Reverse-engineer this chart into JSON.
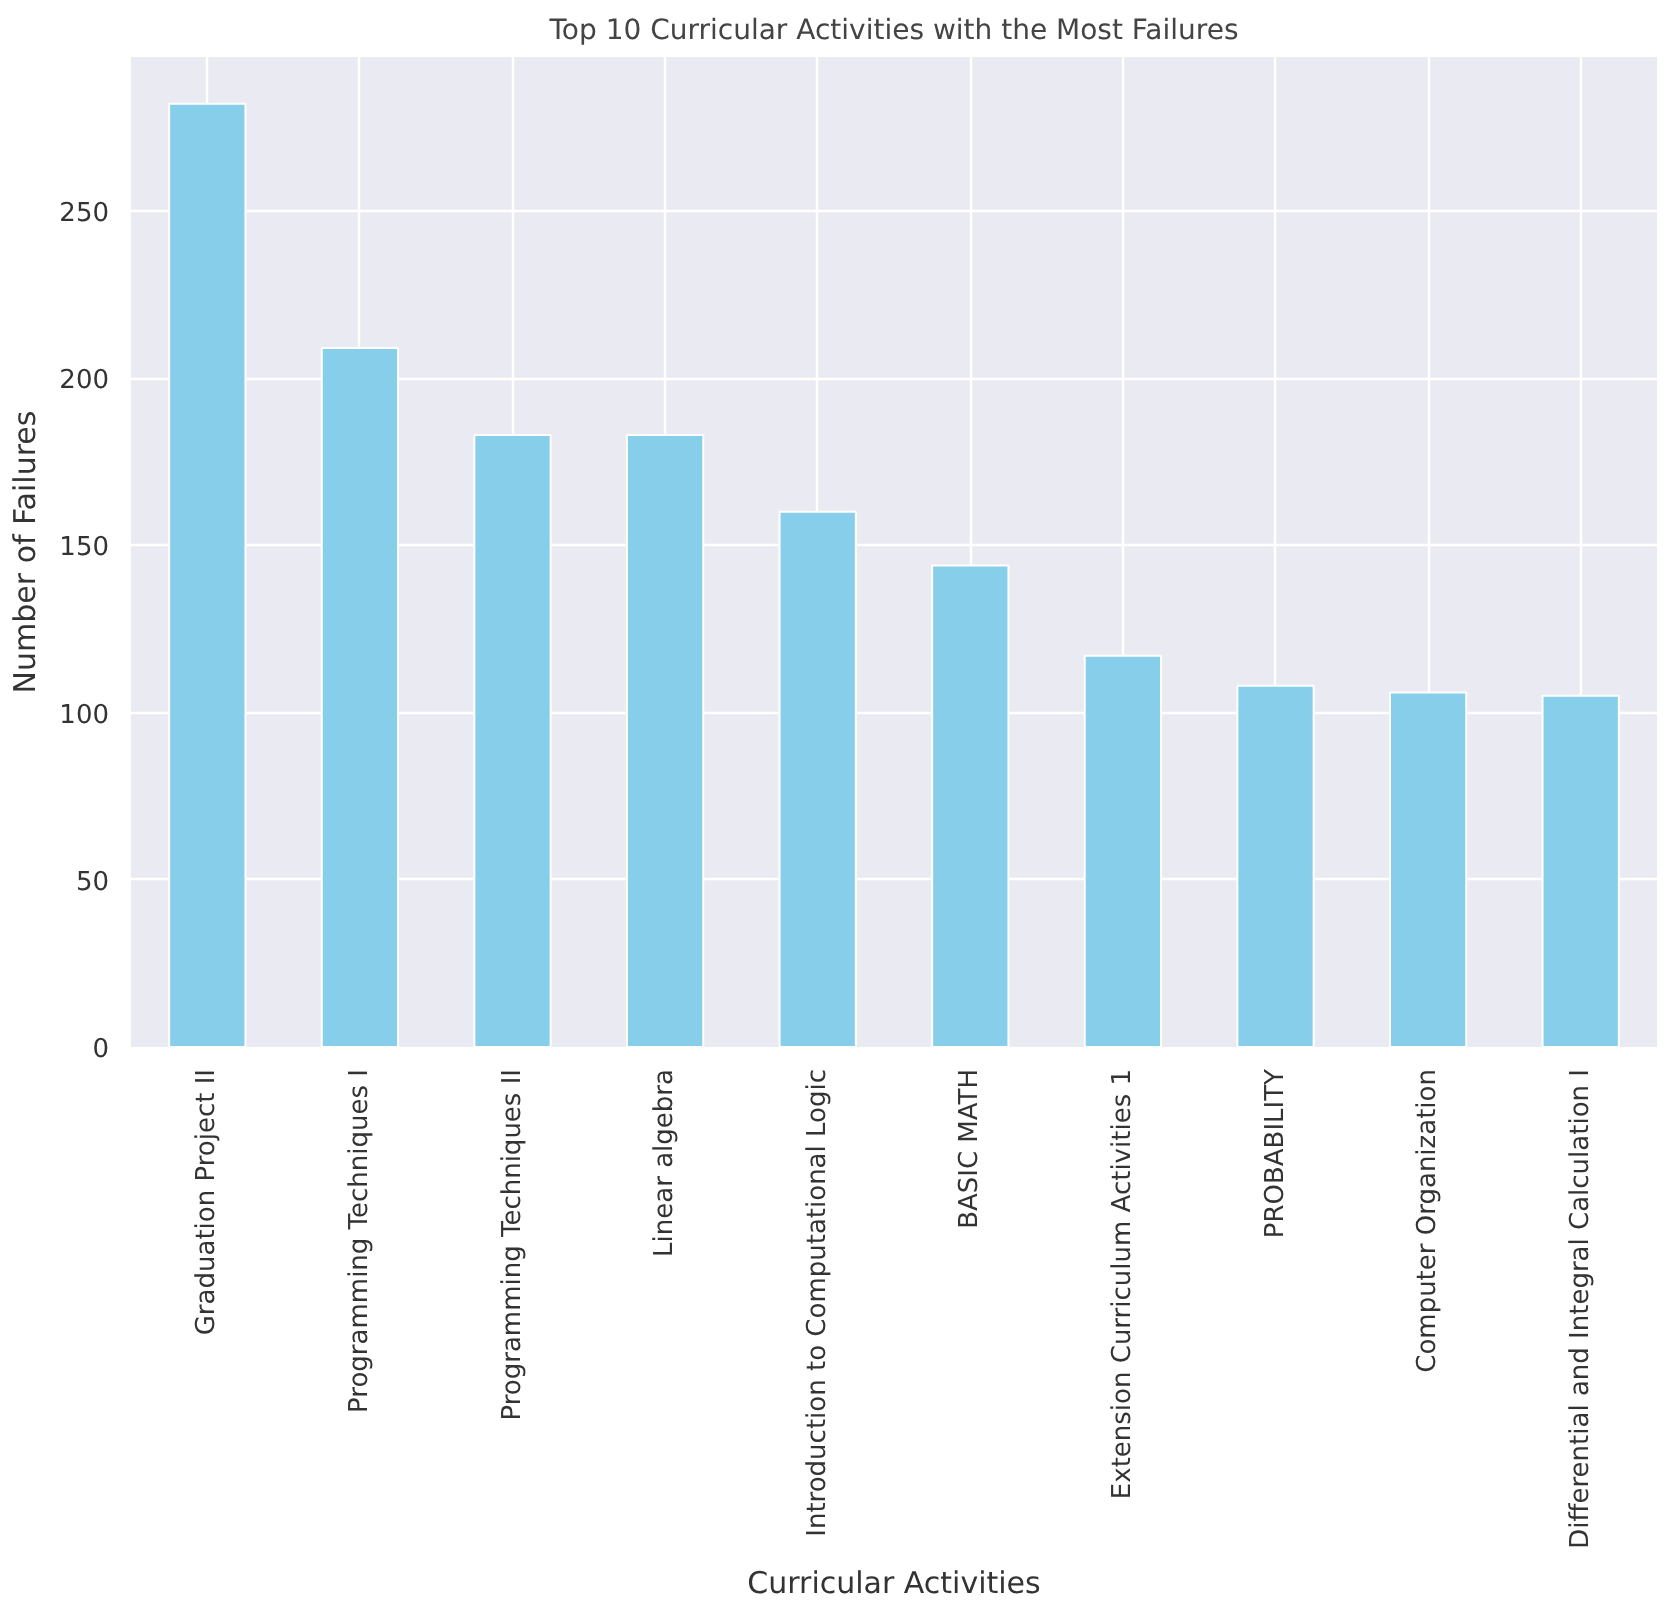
{
  "chart_data": {
    "type": "bar",
    "title": "Top 10 Curricular Activities with the Most Failures",
    "xlabel": "Curricular Activities",
    "ylabel": "Number of Failures",
    "categories": [
      "Graduation Project II",
      "Programming Techniques I",
      "Programming Techniques II",
      "Linear algebra",
      "Introduction to Computational Logic",
      "BASIC MATH",
      "Extension Curriculum Activities 1",
      "PROBABILITY",
      "Computer Organization",
      "Differential and Integral Calculation I"
    ],
    "values": [
      282,
      209,
      183,
      183,
      160,
      144,
      117,
      108,
      106,
      105
    ],
    "color": "#87ceeb",
    "ylim": [
      0,
      296
    ],
    "yticks": [
      0,
      50,
      100,
      150,
      200,
      250
    ],
    "grid": true
  }
}
